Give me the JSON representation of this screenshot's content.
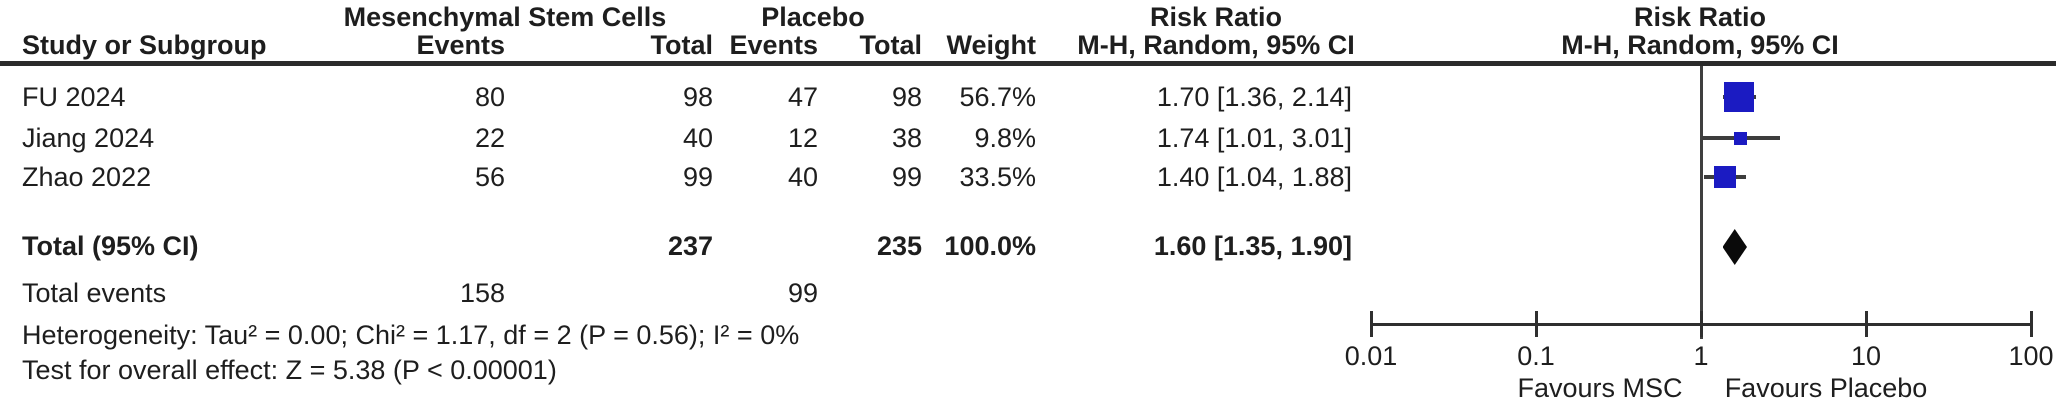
{
  "colors": {
    "square_blue": "#1b1bc2",
    "diamond_black": "#0a0a0a",
    "ci_line": "#3d3d3d",
    "text": "#1e1e1e"
  },
  "header": {
    "group_experimental": "Mesenchymal Stem Cells",
    "group_control": "Placebo",
    "col_study": "Study or Subgroup",
    "col_events_1": "Events",
    "col_total_1": "Total",
    "col_events_2": "Events",
    "col_total_2": "Total",
    "col_weight": "Weight",
    "risk_ratio_left": "Risk Ratio",
    "method_left": "M-H, Random, 95% CI",
    "risk_ratio_right": "Risk Ratio",
    "method_right": "M-H, Random, 95% CI"
  },
  "rows": [
    {
      "study": "FU 2024",
      "e1": "80",
      "t1": "98",
      "e2": "47",
      "t2": "98",
      "weight": "56.7%",
      "rr": "1.70 [1.36, 2.14]"
    },
    {
      "study": "Jiang 2024",
      "e1": "22",
      "t1": "40",
      "e2": "12",
      "t2": "38",
      "weight": "9.8%",
      "rr": "1.74 [1.01, 3.01]"
    },
    {
      "study": "Zhao 2022",
      "e1": "56",
      "t1": "99",
      "e2": "40",
      "t2": "99",
      "weight": "33.5%",
      "rr": "1.40 [1.04, 1.88]"
    }
  ],
  "total_row": {
    "label": "Total (95% CI)",
    "t1": "237",
    "t2": "235",
    "weight": "100.0%",
    "rr": "1.60 [1.35, 1.90]"
  },
  "total_events": {
    "label": "Total events",
    "e1": "158",
    "e2": "99"
  },
  "footer": {
    "heterogeneity": "Heterogeneity: Tau² = 0.00; Chi² = 1.17, df = 2 (P = 0.56); I² = 0%",
    "overall_effect": "Test for overall effect: Z = 5.38 (P < 0.00001)"
  },
  "axis": {
    "tick_labels": [
      "0.01",
      "0.1",
      "1",
      "10",
      "100"
    ],
    "favours_left": "Favours MSC",
    "favours_right": "Favours Placebo"
  },
  "chart_data": {
    "type": "forest",
    "effect_measure": "Risk Ratio, M-H, Random, 95% CI",
    "x_scale": "log",
    "x_ticks": [
      0.01,
      0.1,
      1,
      10,
      100
    ],
    "xlim": [
      0.01,
      100
    ],
    "null_line": 1,
    "studies": [
      {
        "name": "FU 2024",
        "rr": 1.7,
        "ci": [
          1.36,
          2.14
        ],
        "weight": 56.7
      },
      {
        "name": "Jiang 2024",
        "rr": 1.74,
        "ci": [
          1.01,
          3.01
        ],
        "weight": 9.8
      },
      {
        "name": "Zhao 2022",
        "rr": 1.4,
        "ci": [
          1.04,
          1.88
        ],
        "weight": 33.5
      }
    ],
    "total": {
      "rr": 1.6,
      "ci": [
        1.35,
        1.9
      ],
      "weight": 100.0
    },
    "heterogeneity": {
      "tau2": 0.0,
      "chi2": 1.17,
      "df": 2,
      "p": 0.56,
      "i2_pct": 0
    },
    "overall_effect": {
      "z": 5.38,
      "p": "< 0.00001"
    }
  }
}
